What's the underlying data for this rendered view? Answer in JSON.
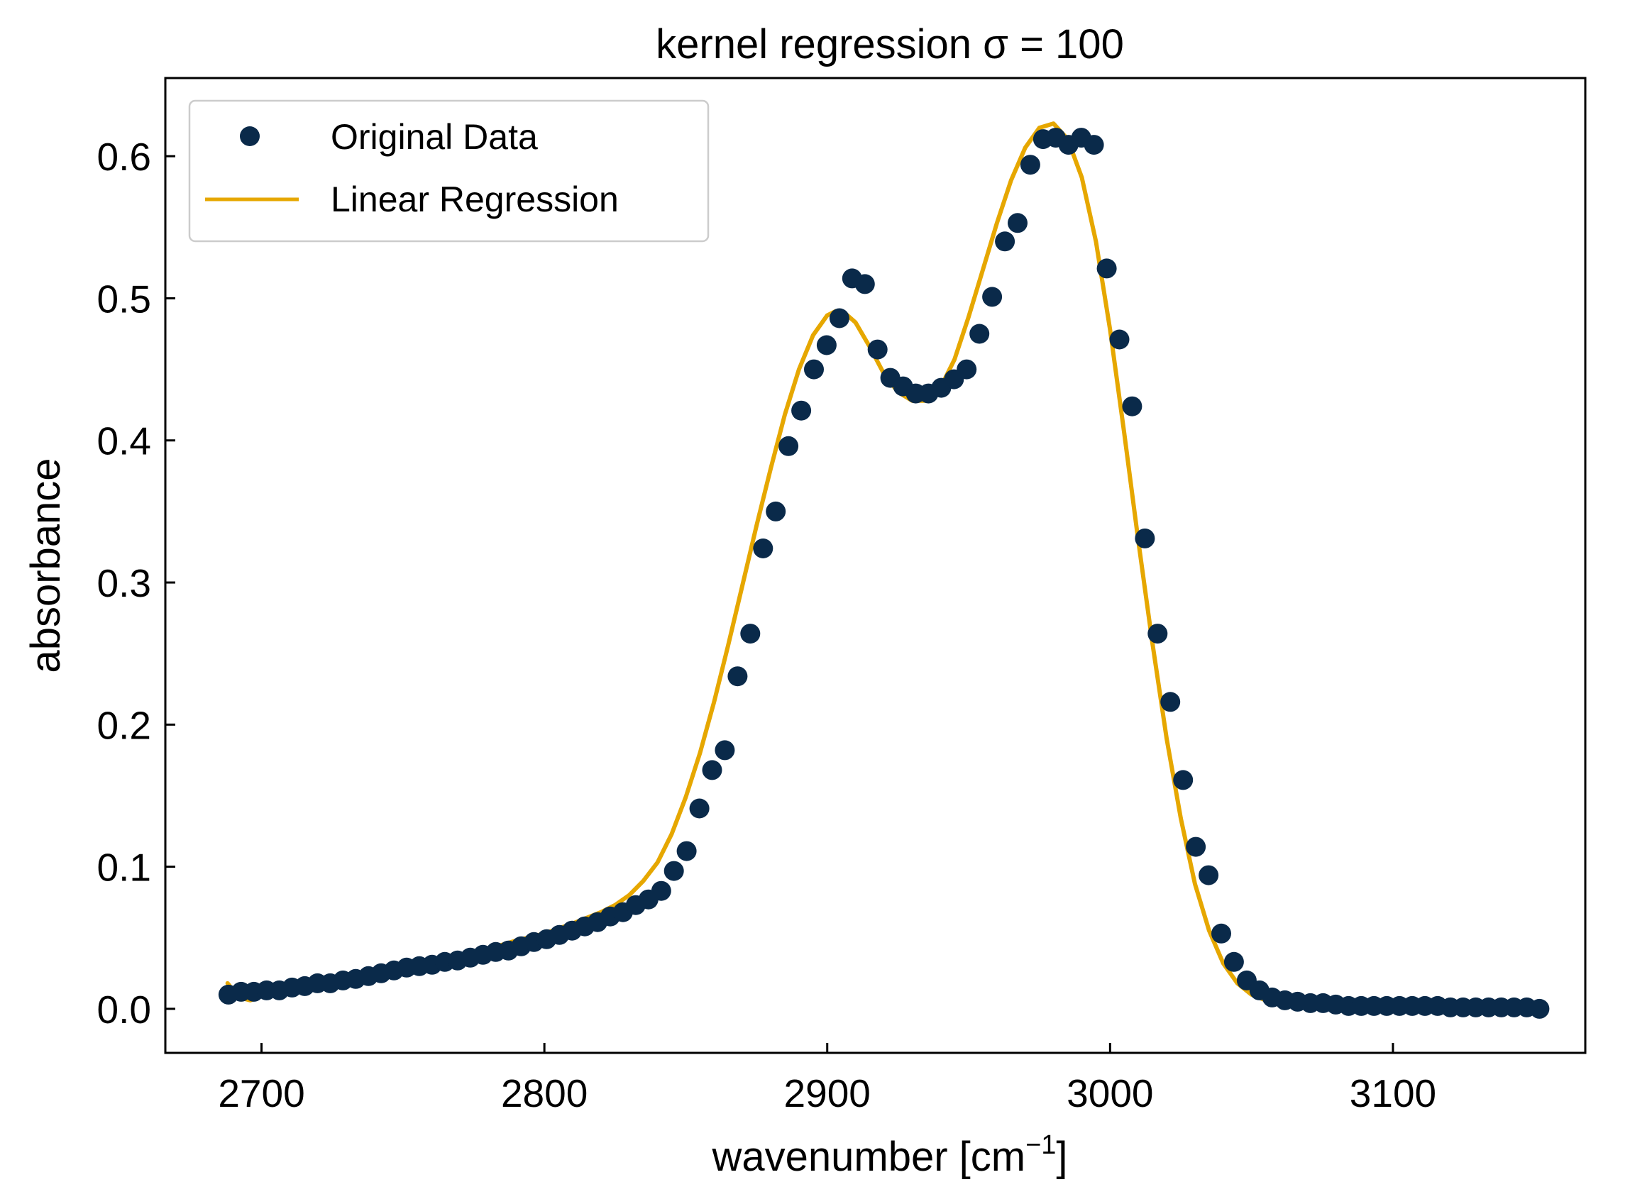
{
  "chart_data": {
    "type": "scatter",
    "title": "kernel regression σ = 100",
    "xlabel": "wavenumber [cm",
    "xlabel_sup": "−1",
    "xlabel_suffix": "]",
    "ylabel": "absorbance",
    "xlim": [
      2666,
      3168
    ],
    "ylim": [
      -0.031,
      0.655
    ],
    "xticks": [
      2700,
      2800,
      2900,
      3000,
      3100
    ],
    "yticks": [
      0.0,
      0.1,
      0.2,
      0.3,
      0.4,
      0.5,
      0.6
    ],
    "xtick_labels": [
      "2700",
      "2800",
      "2900",
      "3000",
      "3100"
    ],
    "ytick_labels": [
      "0.0",
      "0.1",
      "0.2",
      "0.3",
      "0.4",
      "0.5",
      "0.6"
    ],
    "grid": false,
    "legend_position": "top-left",
    "colors": {
      "points": "#0a2a4a",
      "line": "#e6a700"
    },
    "series": [
      {
        "name": "Original Data",
        "kind": "points",
        "x": [
          2688.3,
          2692.8,
          2697.3,
          2701.8,
          2706.3,
          2710.8,
          2715.3,
          2719.8,
          2724.3,
          2728.8,
          2733.3,
          2737.8,
          2742.3,
          2746.8,
          2751.3,
          2755.8,
          2760.3,
          2764.8,
          2769.3,
          2773.8,
          2778.3,
          2782.8,
          2787.3,
          2791.8,
          2796.3,
          2800.8,
          2805.3,
          2809.8,
          2814.3,
          2818.8,
          2823.3,
          2827.8,
          2832.3,
          2836.8,
          2841.3,
          2845.8,
          2850.3,
          2854.8,
          2859.3,
          2863.8,
          2868.3,
          2872.8,
          2877.3,
          2881.8,
          2886.3,
          2890.8,
          2895.3,
          2899.8,
          2904.3,
          2908.8,
          2913.3,
          2917.8,
          2922.3,
          2926.8,
          2931.3,
          2935.8,
          2940.3,
          2944.8,
          2949.3,
          2953.8,
          2958.3,
          2962.8,
          2967.3,
          2971.8,
          2976.3,
          2980.8,
          2985.3,
          2989.8,
          2994.3,
          2998.8,
          3003.3,
          3007.8,
          3012.3,
          3016.8,
          3021.3,
          3025.8,
          3030.3,
          3034.8,
          3039.3,
          3043.8,
          3048.3,
          3052.8,
          3057.3,
          3061.8,
          3066.3,
          3070.8,
          3075.3,
          3079.8,
          3084.3,
          3088.8,
          3093.3,
          3097.8,
          3102.3,
          3106.8,
          3111.3,
          3115.8,
          3120.3,
          3124.8,
          3129.3,
          3133.8,
          3138.3,
          3142.8,
          3147.3,
          3151.8
        ],
        "y": [
          0.01,
          0.012,
          0.012,
          0.013,
          0.013,
          0.015,
          0.016,
          0.018,
          0.018,
          0.02,
          0.021,
          0.023,
          0.025,
          0.027,
          0.029,
          0.03,
          0.031,
          0.033,
          0.034,
          0.036,
          0.038,
          0.04,
          0.041,
          0.044,
          0.047,
          0.049,
          0.052,
          0.055,
          0.058,
          0.061,
          0.065,
          0.068,
          0.073,
          0.077,
          0.083,
          0.097,
          0.111,
          0.141,
          0.168,
          0.182,
          0.234,
          0.264,
          0.324,
          0.35,
          0.396,
          0.421,
          0.45,
          0.467,
          0.486,
          0.514,
          0.51,
          0.464,
          0.444,
          0.438,
          0.433,
          0.433,
          0.437,
          0.443,
          0.45,
          0.475,
          0.501,
          0.54,
          0.553,
          0.594,
          0.612,
          0.613,
          0.608,
          0.613,
          0.608,
          0.521,
          0.471,
          0.424,
          0.331,
          0.264,
          0.216,
          0.161,
          0.114,
          0.094,
          0.053,
          0.033,
          0.02,
          0.013,
          0.008,
          0.006,
          0.005,
          0.004,
          0.004,
          0.003,
          0.002,
          0.002,
          0.002,
          0.002,
          0.002,
          0.002,
          0.002,
          0.002,
          0.001,
          0.001,
          0.001,
          0.001,
          0.001,
          0.001,
          0.001,
          0.0
        ]
      },
      {
        "name": "Linear Regression",
        "kind": "line",
        "x": [
          2688,
          2692,
          2696,
          2700,
          2705,
          2710,
          2720,
          2730,
          2740,
          2750,
          2760,
          2770,
          2780,
          2790,
          2800,
          2810,
          2820,
          2825,
          2830,
          2835,
          2840,
          2845,
          2850,
          2855,
          2860,
          2865,
          2870,
          2875,
          2880,
          2885,
          2890,
          2895,
          2900,
          2903,
          2906,
          2910,
          2915,
          2920,
          2925,
          2930,
          2935,
          2940,
          2945,
          2950,
          2955,
          2960,
          2965,
          2970,
          2975,
          2980,
          2985,
          2990,
          2995,
          3000,
          3005,
          3010,
          3015,
          3020,
          3025,
          3030,
          3035,
          3040,
          3045,
          3050,
          3055,
          3060,
          3065,
          3070,
          3080,
          3090,
          3100,
          3110,
          3120,
          3125,
          3130,
          3135,
          3140,
          3145,
          3150
        ],
        "y": [
          0.018,
          0.008,
          0.006,
          0.009,
          0.013,
          0.016,
          0.018,
          0.022,
          0.026,
          0.03,
          0.034,
          0.038,
          0.042,
          0.048,
          0.053,
          0.06,
          0.068,
          0.073,
          0.08,
          0.09,
          0.103,
          0.123,
          0.149,
          0.18,
          0.216,
          0.256,
          0.298,
          0.34,
          0.38,
          0.418,
          0.45,
          0.474,
          0.488,
          0.491,
          0.49,
          0.483,
          0.466,
          0.447,
          0.434,
          0.428,
          0.428,
          0.437,
          0.457,
          0.487,
          0.52,
          0.553,
          0.583,
          0.606,
          0.62,
          0.623,
          0.612,
          0.585,
          0.54,
          0.478,
          0.405,
          0.329,
          0.257,
          0.19,
          0.134,
          0.088,
          0.055,
          0.032,
          0.018,
          0.01,
          0.006,
          0.004,
          0.003,
          0.002,
          0.0,
          -0.001,
          0.0,
          0.0,
          -0.001,
          -0.001,
          0.0,
          0.001,
          0.002,
          0.003,
          0.001
        ]
      }
    ]
  }
}
